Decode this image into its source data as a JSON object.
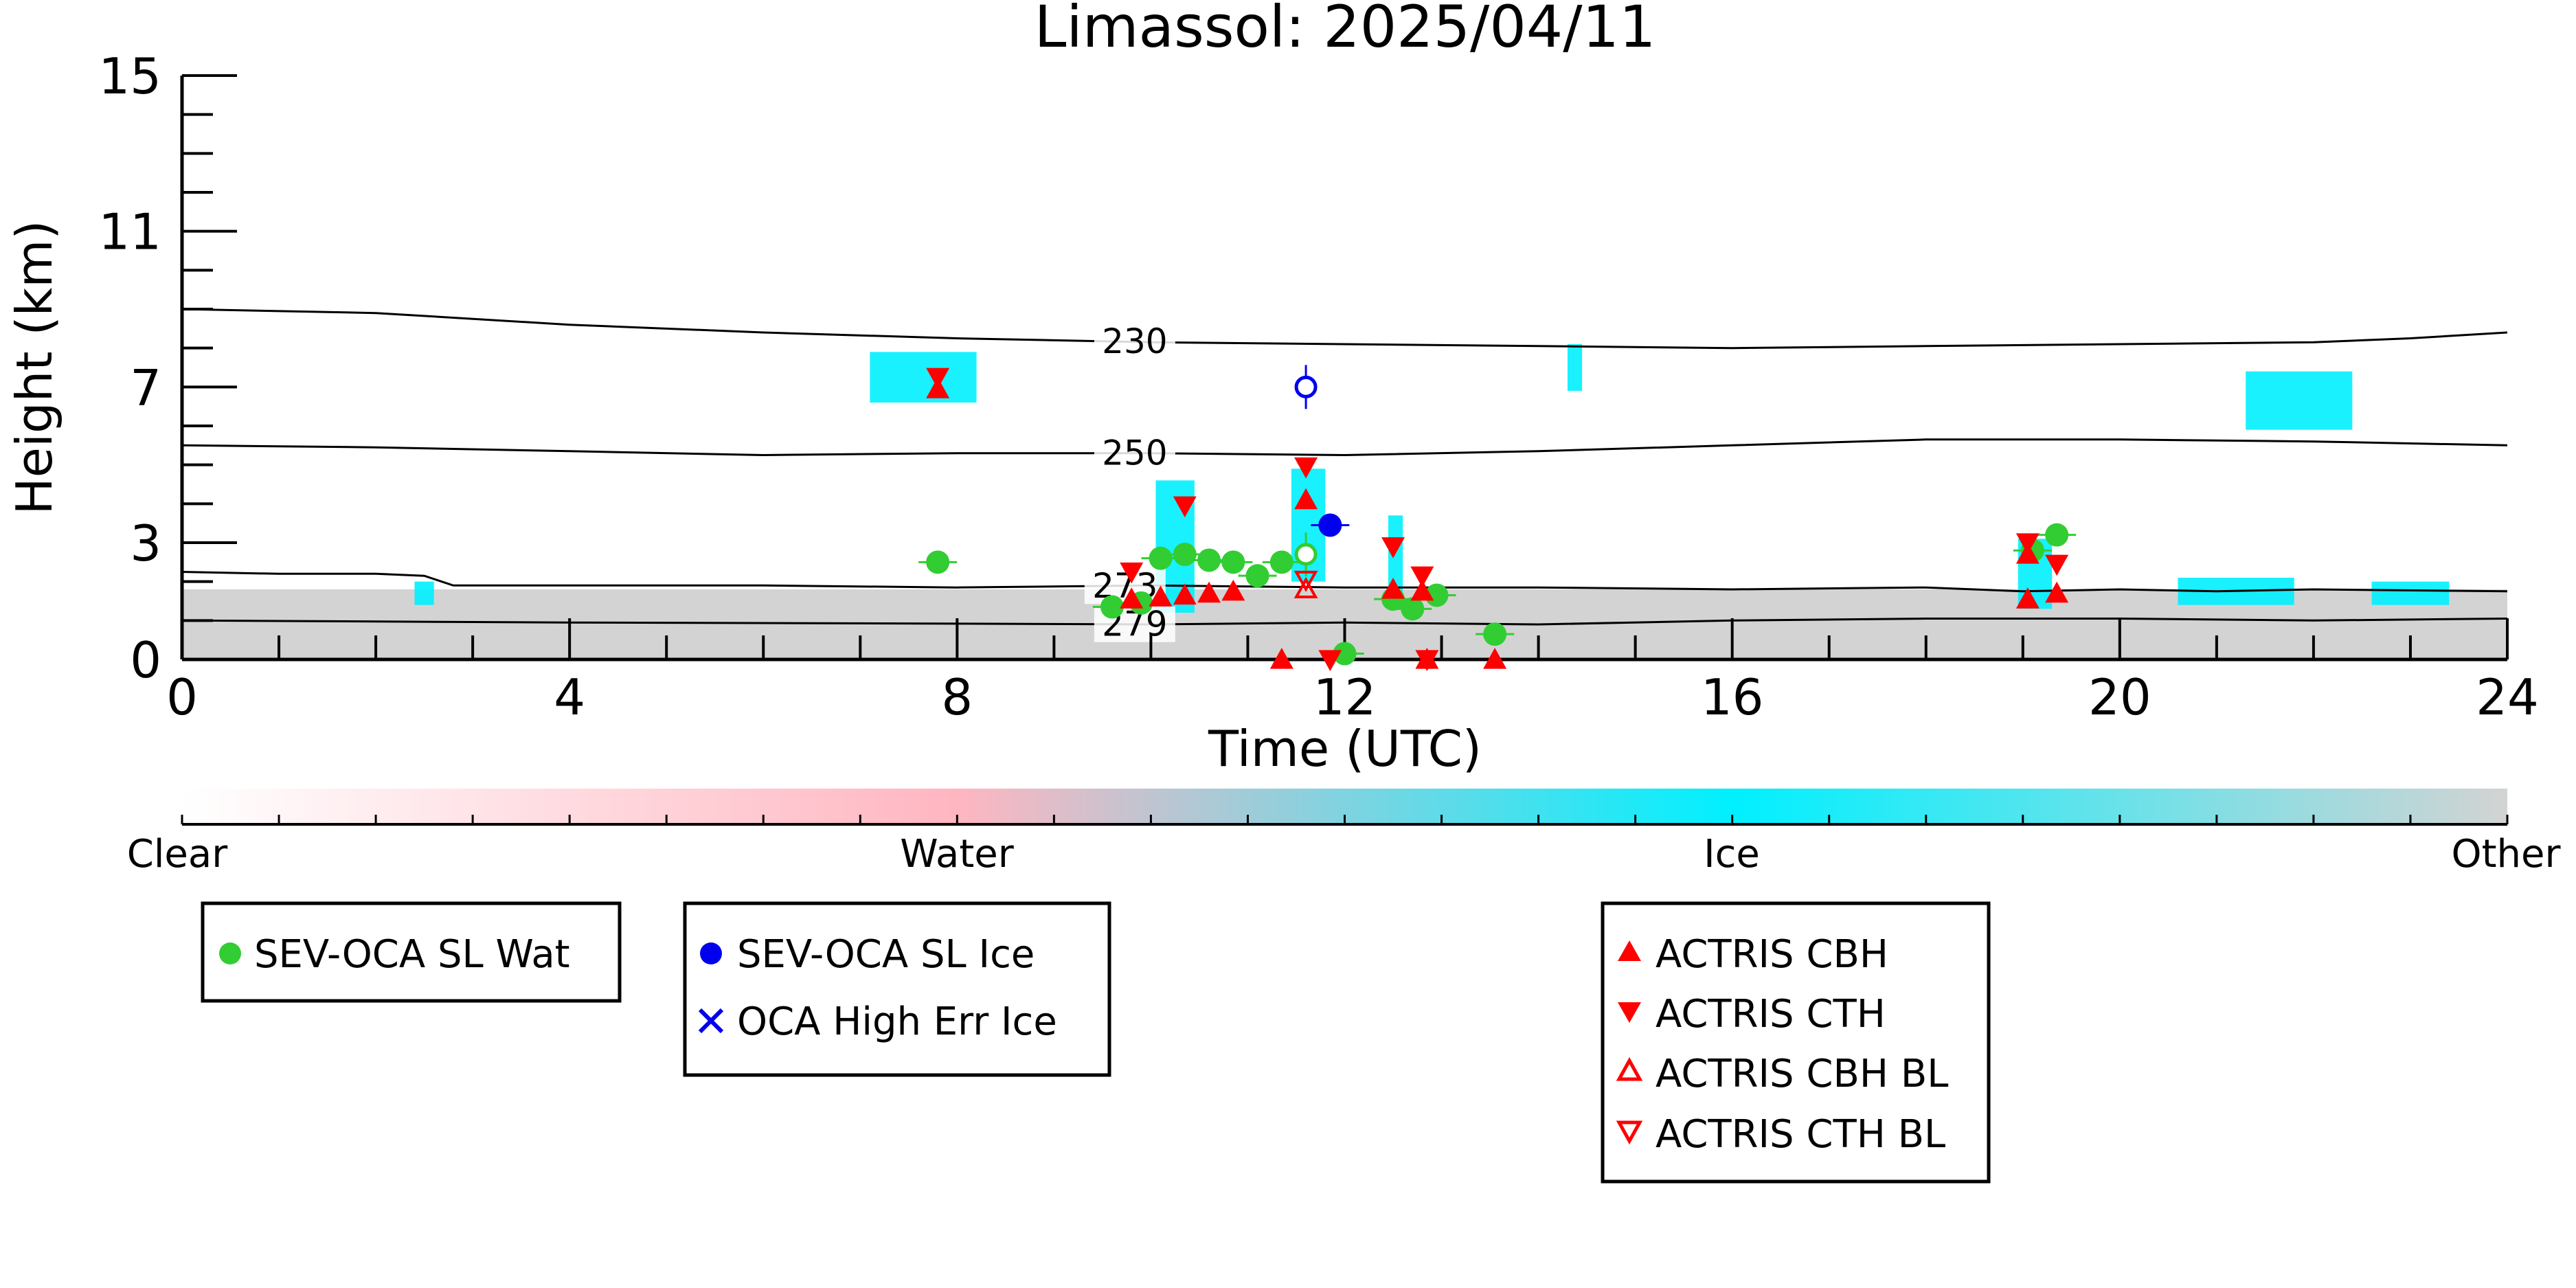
{
  "chart_data": {
    "type": "scatter",
    "title": "Limassol: 2025/04/11",
    "xlabel": "Time (UTC)",
    "ylabel": "Height (km)",
    "xlim": [
      0,
      24
    ],
    "ylim": [
      0,
      15
    ],
    "x_ticks": [
      0,
      4,
      8,
      12,
      16,
      20,
      24
    ],
    "x_tick_labels": [
      "0",
      "4",
      "8",
      "12",
      "16",
      "20",
      "24"
    ],
    "y_ticks": [
      0,
      3,
      7,
      11,
      15
    ],
    "y_tick_labels": [
      "0",
      "3",
      "7",
      "11",
      "15"
    ],
    "grid": false,
    "colors": {
      "clear": "#ffffff",
      "water": "#ffb6c1",
      "ice": "#00f0ff",
      "other": "#d3d3d3",
      "sev_oca_water": "#32cd32",
      "sev_oca_ice": "#0000ee",
      "actris": "#ff0000",
      "contour": "#000000"
    },
    "colorbar": {
      "labels": [
        "Clear",
        "Water",
        "Ice",
        "Other"
      ],
      "stops": [
        0,
        0.333,
        0.667,
        1
      ]
    },
    "temperature_contours": [
      {
        "label": "230",
        "label_x": 9.5,
        "points": [
          [
            0,
            9.0
          ],
          [
            2,
            8.9
          ],
          [
            4,
            8.6
          ],
          [
            6,
            8.4
          ],
          [
            8,
            8.25
          ],
          [
            10,
            8.15
          ],
          [
            12,
            8.1
          ],
          [
            14,
            8.05
          ],
          [
            16,
            8.0
          ],
          [
            18,
            8.05
          ],
          [
            20,
            8.1
          ],
          [
            22,
            8.15
          ],
          [
            23,
            8.25
          ],
          [
            24,
            8.4
          ]
        ]
      },
      {
        "label": "250",
        "label_x": 9.5,
        "points": [
          [
            0,
            5.5
          ],
          [
            2,
            5.45
          ],
          [
            4,
            5.35
          ],
          [
            6,
            5.25
          ],
          [
            8,
            5.3
          ],
          [
            10,
            5.3
          ],
          [
            12,
            5.25
          ],
          [
            14,
            5.35
          ],
          [
            16,
            5.5
          ],
          [
            18,
            5.65
          ],
          [
            20,
            5.65
          ],
          [
            22,
            5.6
          ],
          [
            24,
            5.5
          ]
        ]
      },
      {
        "label": "273",
        "label_x": 9.4,
        "points": [
          [
            0,
            2.25
          ],
          [
            1,
            2.2
          ],
          [
            2,
            2.2
          ],
          [
            2.5,
            2.15
          ],
          [
            2.8,
            1.9
          ],
          [
            4,
            1.9
          ],
          [
            6,
            1.9
          ],
          [
            8,
            1.85
          ],
          [
            10,
            1.9
          ],
          [
            12,
            1.85
          ],
          [
            14,
            1.85
          ],
          [
            16,
            1.8
          ],
          [
            18,
            1.85
          ],
          [
            19,
            1.75
          ],
          [
            20,
            1.8
          ],
          [
            21,
            1.75
          ],
          [
            22,
            1.8
          ],
          [
            24,
            1.75
          ]
        ]
      },
      {
        "label": "279",
        "label_x": 9.5,
        "points": [
          [
            0,
            1.0
          ],
          [
            4,
            0.95
          ],
          [
            8,
            0.92
          ],
          [
            10,
            0.9
          ],
          [
            12,
            0.95
          ],
          [
            14,
            0.9
          ],
          [
            16,
            1.0
          ],
          [
            18,
            1.05
          ],
          [
            20,
            1.05
          ],
          [
            22,
            1.0
          ],
          [
            24,
            1.05
          ]
        ]
      }
    ],
    "series": [
      {
        "name": "SEV-OCA SL Wat",
        "marker": "filled-circle",
        "color": "#32cd32",
        "points": [
          [
            7.8,
            2.5
          ],
          [
            9.6,
            1.35
          ],
          [
            9.9,
            1.45
          ],
          [
            10.1,
            2.6
          ],
          [
            10.35,
            2.7
          ],
          [
            10.6,
            2.55
          ],
          [
            10.85,
            2.5
          ],
          [
            11.1,
            2.15
          ],
          [
            11.35,
            2.5
          ],
          [
            12.0,
            0.15
          ],
          [
            12.5,
            1.55
          ],
          [
            12.7,
            1.3
          ],
          [
            12.95,
            1.65
          ],
          [
            13.55,
            0.65
          ],
          [
            19.1,
            2.8
          ],
          [
            19.35,
            3.2
          ]
        ]
      },
      {
        "name": "SEV-OCA SL Wat (open)",
        "marker": "open-circle",
        "color": "#32cd32",
        "points": [
          [
            11.6,
            2.7
          ]
        ]
      },
      {
        "name": "SEV-OCA SL Ice",
        "marker": "filled-circle",
        "color": "#0000ee",
        "points": [
          [
            11.85,
            3.45
          ]
        ]
      },
      {
        "name": "SEV-OCA SL Ice (open)",
        "marker": "open-circle",
        "color": "#0000ee",
        "points": [
          [
            11.6,
            7.0
          ]
        ]
      },
      {
        "name": "OCA High Err Ice",
        "marker": "x",
        "color": "#0000ee",
        "points": []
      },
      {
        "name": "ACTRIS CBH",
        "marker": "triangle-up",
        "color": "#ff0000",
        "points": [
          [
            7.8,
            6.95
          ],
          [
            9.8,
            1.55
          ],
          [
            10.1,
            1.6
          ],
          [
            10.35,
            1.65
          ],
          [
            10.6,
            1.7
          ],
          [
            10.85,
            1.75
          ],
          [
            11.6,
            4.1
          ],
          [
            12.5,
            1.8
          ],
          [
            12.8,
            1.75
          ],
          [
            19.05,
            1.55
          ],
          [
            19.35,
            1.7
          ],
          [
            11.35,
            0.0
          ],
          [
            12.85,
            0.0
          ],
          [
            13.55,
            0.0
          ],
          [
            19.05,
            2.7
          ]
        ]
      },
      {
        "name": "ACTRIS CTH",
        "marker": "triangle-down",
        "color": "#ff0000",
        "points": [
          [
            7.8,
            7.25
          ],
          [
            9.8,
            2.25
          ],
          [
            10.35,
            3.95
          ],
          [
            11.6,
            4.95
          ],
          [
            12.5,
            2.9
          ],
          [
            12.8,
            2.15
          ],
          [
            19.05,
            3.0
          ],
          [
            19.35,
            2.45
          ],
          [
            12.85,
            0.0
          ],
          [
            11.85,
            0.0
          ]
        ]
      },
      {
        "name": "ACTRIS CBH BL",
        "marker": "open-triangle-up",
        "color": "#ff0000",
        "points": [
          [
            11.6,
            1.8
          ]
        ]
      },
      {
        "name": "ACTRIS CTH BL",
        "marker": "open-triangle-down",
        "color": "#ff0000",
        "points": [
          [
            11.6,
            2.05
          ]
        ]
      }
    ],
    "legends": [
      {
        "entries": [
          {
            "label": "SEV-OCA SL Wat",
            "marker": "filled-circle",
            "color": "#32cd32"
          }
        ]
      },
      {
        "entries": [
          {
            "label": "SEV-OCA SL Ice",
            "marker": "filled-circle",
            "color": "#0000ee"
          },
          {
            "label": "OCA High Err Ice",
            "marker": "x",
            "color": "#0000ee"
          }
        ]
      },
      {
        "entries": [
          {
            "label": "ACTRIS CBH",
            "marker": "triangle-up",
            "color": "#ff0000"
          },
          {
            "label": "ACTRIS CTH",
            "marker": "triangle-down",
            "color": "#ff0000"
          },
          {
            "label": "ACTRIS CBH BL",
            "marker": "open-triangle-up",
            "color": "#ff0000"
          },
          {
            "label": "ACTRIS CTH BL",
            "marker": "open-triangle-down",
            "color": "#ff0000"
          }
        ]
      }
    ],
    "background_layers": {
      "other_top_km": 1.8,
      "ice_patches": [
        {
          "t0": 7.1,
          "t1": 8.2,
          "h0": 6.6,
          "h1": 7.9
        },
        {
          "t0": 10.05,
          "t1": 10.45,
          "h0": 1.2,
          "h1": 4.6
        },
        {
          "t0": 11.45,
          "t1": 11.8,
          "h0": 2.0,
          "h1": 4.9
        },
        {
          "t0": 12.45,
          "t1": 12.6,
          "h0": 1.5,
          "h1": 3.7
        },
        {
          "t0": 14.3,
          "t1": 14.45,
          "h0": 6.9,
          "h1": 8.1
        },
        {
          "t0": 21.3,
          "t1": 22.4,
          "h0": 5.9,
          "h1": 7.4
        },
        {
          "t0": 18.95,
          "t1": 19.3,
          "h0": 1.3,
          "h1": 3.1
        },
        {
          "t0": 20.6,
          "t1": 21.8,
          "h0": 1.4,
          "h1": 2.1
        },
        {
          "t0": 22.6,
          "t1": 23.4,
          "h0": 1.4,
          "h1": 2.0
        },
        {
          "t0": 2.4,
          "t1": 2.6,
          "h0": 1.4,
          "h1": 2.0
        }
      ]
    }
  }
}
